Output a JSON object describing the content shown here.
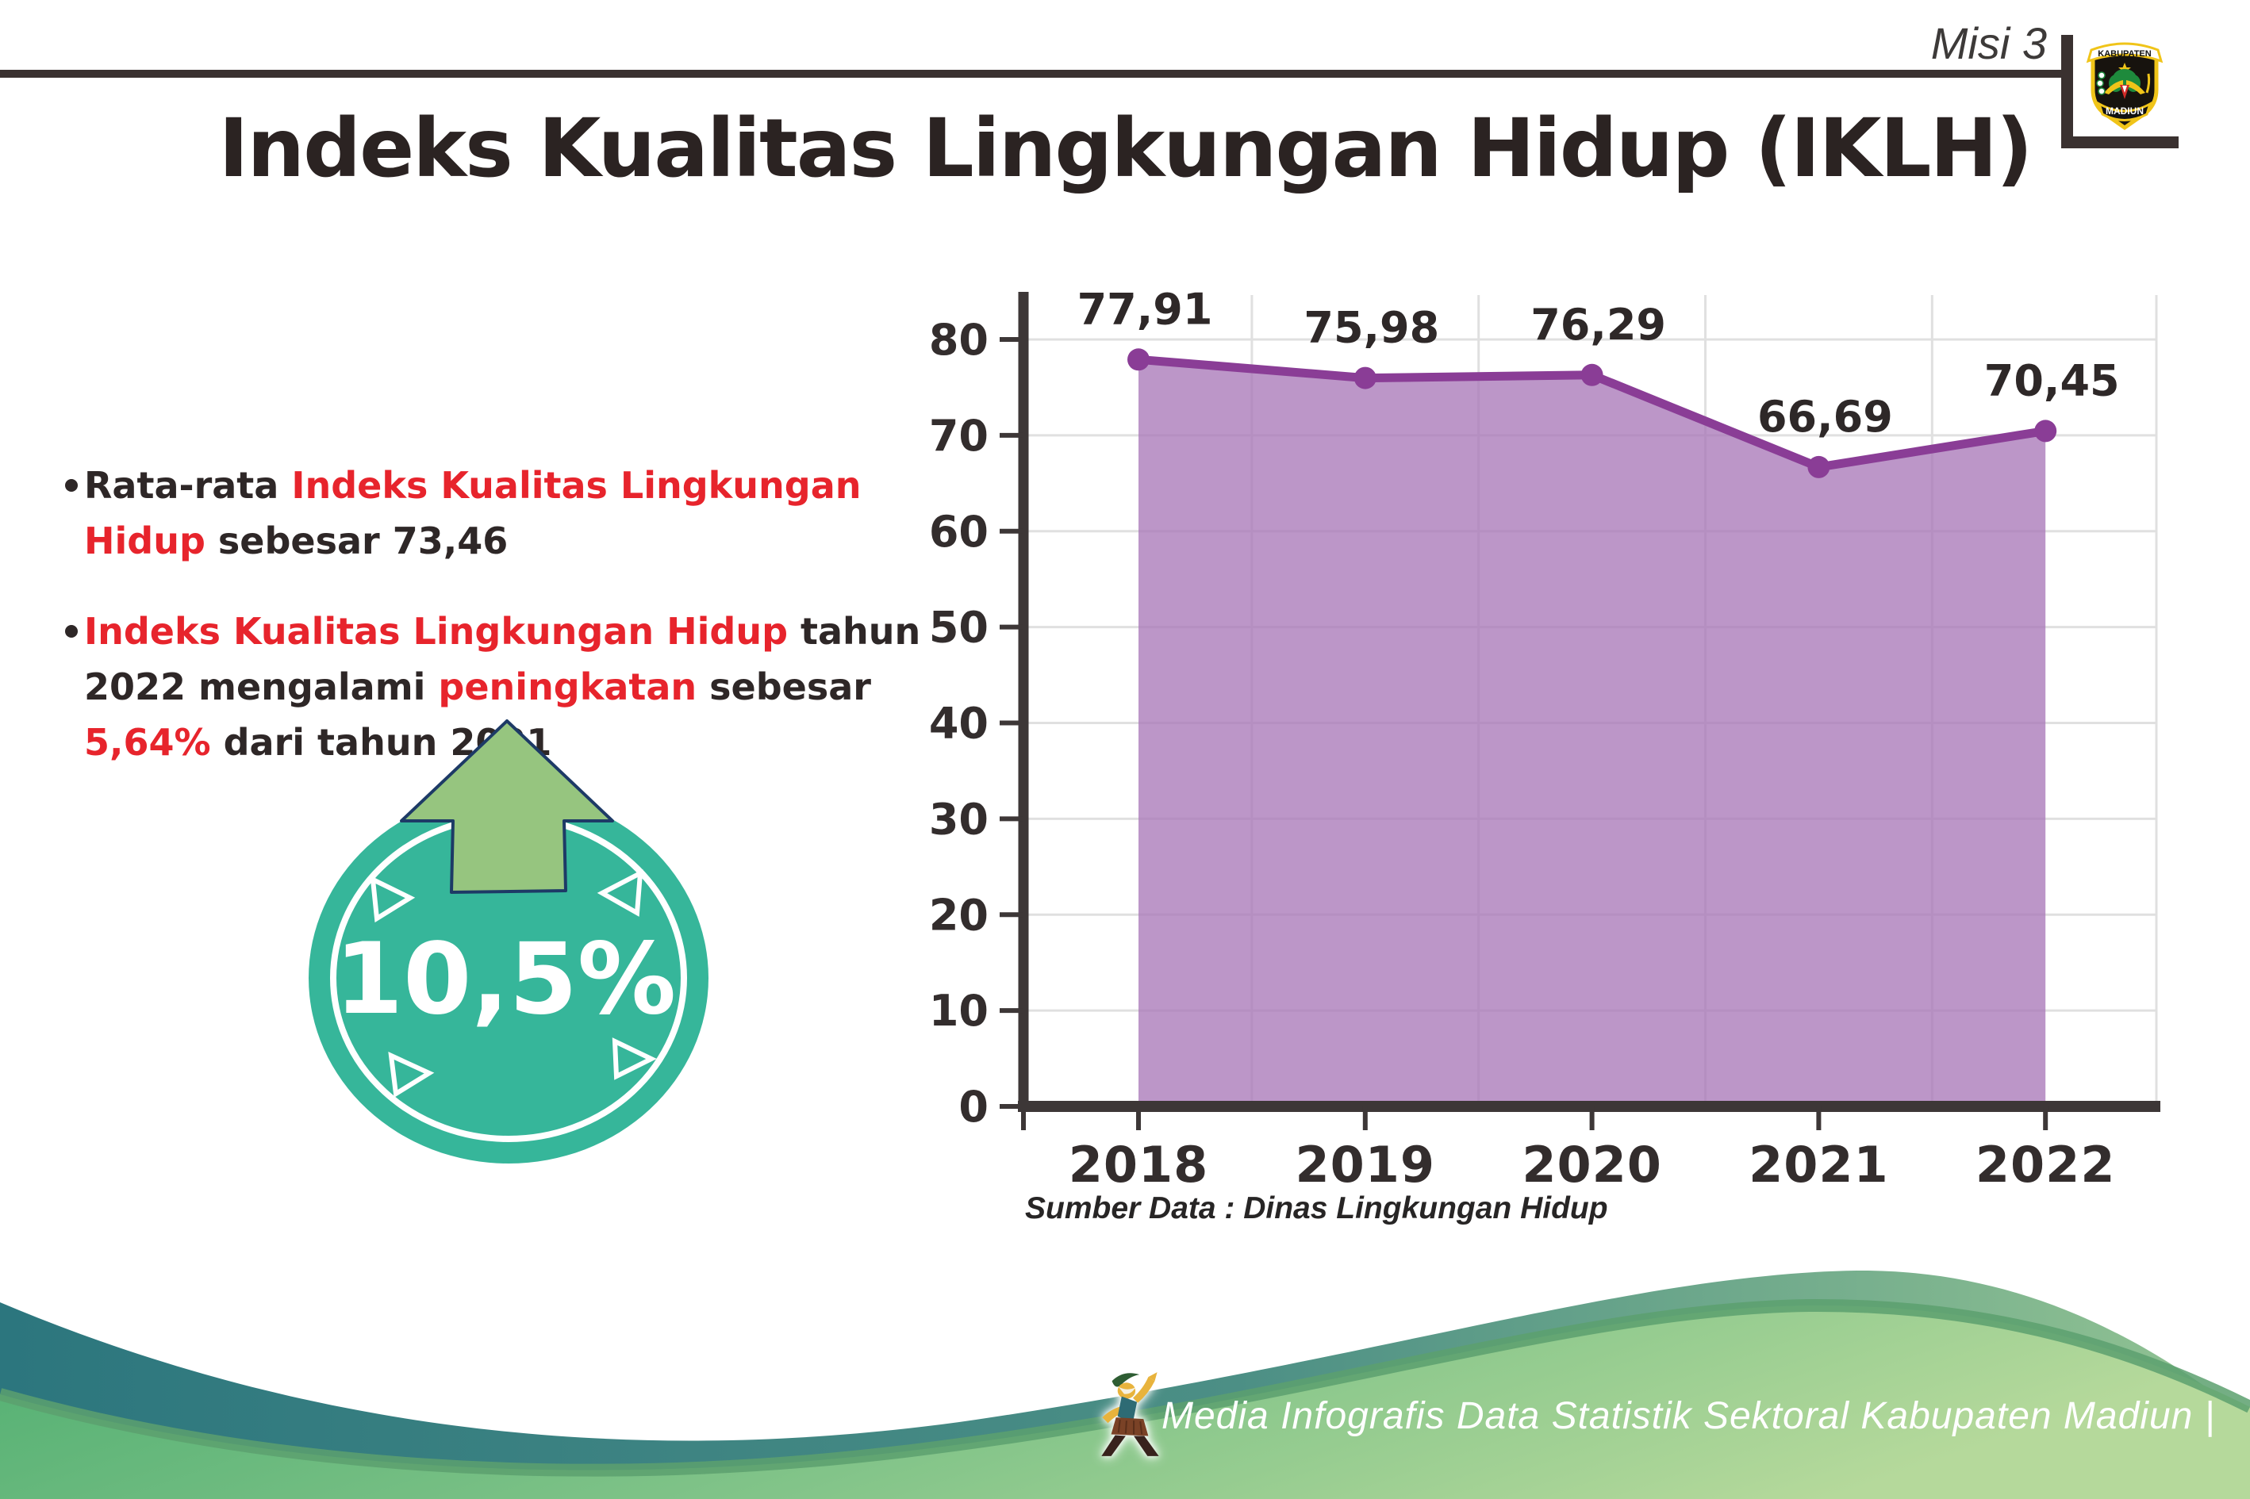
{
  "header": {
    "mission_label": "Misi 3",
    "logo": {
      "icon": "kabupaten-madiun-seal",
      "top_text": "KABUPATEN",
      "bottom_text": "MADIUN"
    }
  },
  "title": "Indeks Kualitas Lingkungan Hidup (IKLH)",
  "bullets": [
    {
      "segments": [
        {
          "t": "Rata-rata ",
          "c": "dark"
        },
        {
          "t": "Indeks Kualitas Lingkungan Hidup",
          "c": "red"
        },
        {
          "t": " sebesar 73,46",
          "c": "dark"
        }
      ]
    },
    {
      "segments": [
        {
          "t": "Indeks Kualitas Lingkungan Hidup",
          "c": "red"
        },
        {
          "t": " tahun 2022 mengalami ",
          "c": "dark"
        },
        {
          "t": "peningkatan",
          "c": "red"
        },
        {
          "t": " sebesar ",
          "c": "dark"
        },
        {
          "t": "5,64%",
          "c": "red"
        },
        {
          "t": " dari tahun 2021",
          "c": "dark"
        }
      ]
    }
  ],
  "badge": {
    "value": "10,5%",
    "icon": "arrow-up-icon"
  },
  "chart_data": {
    "type": "area",
    "title": "",
    "categories": [
      "2018",
      "2019",
      "2020",
      "2021",
      "2022"
    ],
    "values": [
      77.91,
      75.98,
      76.29,
      66.69,
      70.45
    ],
    "labels": [
      "77,91",
      "75,98",
      "76,29",
      "66,69",
      "70,45"
    ],
    "series_name": "IKLH",
    "xlabel": "",
    "ylabel": "",
    "ylim": [
      0,
      80
    ],
    "yticks": [
      0,
      10,
      20,
      30,
      40,
      50,
      60,
      70,
      80
    ],
    "ytick_labels": [
      "0",
      "10",
      "20",
      "30",
      "40",
      "50",
      "60",
      "70",
      "80"
    ],
    "grid": true,
    "legend": "none",
    "area_color": "#a978b9",
    "line_color": "#8a3d96",
    "label_color": "#2e2828"
  },
  "source_note": "Sumber Data : Dinas Lingkungan Hidup",
  "footer": {
    "text": "Media Infografis Data Statistik Sektoral Kabupaten Madiun |",
    "mascot": "dancer-mascot-icon"
  },
  "colors": {
    "accent_red": "#e7242c",
    "dark_text": "#2e2727",
    "badge_teal": "#36b69a",
    "arrow_green": "#96c57f",
    "footer_teal": "#2c767e",
    "footer_green": "#55b077"
  }
}
